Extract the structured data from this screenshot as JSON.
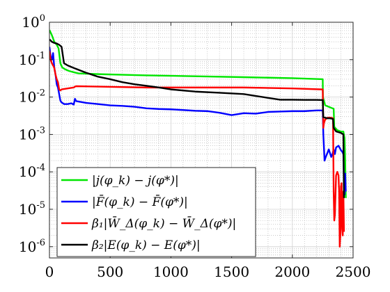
{
  "chart_data": {
    "type": "line",
    "title": "",
    "xlabel": "",
    "ylabel": "",
    "xlim": [
      0,
      2500
    ],
    "ylim": [
      5e-07,
      1
    ],
    "yscale": "log",
    "grid": "on (major and minor)",
    "legend_position": "bottom-left",
    "x_ticks": [
      "0",
      "500",
      "1000",
      "1500",
      "2000",
      "2500"
    ],
    "y_tick_exponents": [
      "0",
      "-1",
      "-2",
      "-3",
      "-4",
      "-5",
      "-6"
    ],
    "y_tick_base": "10",
    "series": [
      {
        "name": "|j(φ_k) − j(φ*)|",
        "color": "#00e600",
        "points": [
          [
            0,
            0.62
          ],
          [
            20,
            0.45
          ],
          [
            40,
            0.3
          ],
          [
            60,
            0.25
          ],
          [
            75,
            0.2
          ],
          [
            90,
            0.08
          ],
          [
            105,
            0.062
          ],
          [
            130,
            0.055
          ],
          [
            160,
            0.05
          ],
          [
            200,
            0.046
          ],
          [
            240,
            0.043
          ],
          [
            400,
            0.041
          ],
          [
            800,
            0.038
          ],
          [
            1200,
            0.036
          ],
          [
            1600,
            0.034
          ],
          [
            2000,
            0.032
          ],
          [
            2250,
            0.03
          ],
          [
            2252,
            0.01
          ],
          [
            2270,
            0.006
          ],
          [
            2300,
            0.0055
          ],
          [
            2330,
            0.005
          ],
          [
            2340,
            0.0049
          ],
          [
            2345,
            0.0016
          ],
          [
            2370,
            0.0013
          ],
          [
            2400,
            0.0012
          ],
          [
            2420,
            0.0012
          ],
          [
            2430,
            0.0008
          ],
          [
            2435,
            0.0002
          ],
          [
            2440,
            2e-05
          ]
        ]
      },
      {
        "name": "|F̄(φ_k) − F̄(φ*)|",
        "color": "#0000ff",
        "points": [
          [
            0,
            0.22
          ],
          [
            10,
            0.12
          ],
          [
            20,
            0.1
          ],
          [
            30,
            0.15
          ],
          [
            40,
            0.06
          ],
          [
            50,
            0.04
          ],
          [
            60,
            0.022
          ],
          [
            70,
            0.018
          ],
          [
            80,
            0.012
          ],
          [
            90,
            0.008
          ],
          [
            100,
            0.0072
          ],
          [
            120,
            0.0065
          ],
          [
            150,
            0.0065
          ],
          [
            180,
            0.0068
          ],
          [
            200,
            0.0063
          ],
          [
            210,
            0.009
          ],
          [
            220,
            0.0078
          ],
          [
            300,
            0.007
          ],
          [
            400,
            0.0065
          ],
          [
            500,
            0.006
          ],
          [
            600,
            0.0058
          ],
          [
            700,
            0.0055
          ],
          [
            800,
            0.005
          ],
          [
            900,
            0.0048
          ],
          [
            1000,
            0.0047
          ],
          [
            1100,
            0.0045
          ],
          [
            1200,
            0.0043
          ],
          [
            1300,
            0.0042
          ],
          [
            1400,
            0.0038
          ],
          [
            1500,
            0.0033
          ],
          [
            1550,
            0.0035
          ],
          [
            1600,
            0.0037
          ],
          [
            1700,
            0.0036
          ],
          [
            1800,
            0.004
          ],
          [
            1900,
            0.0041
          ],
          [
            2000,
            0.0042
          ],
          [
            2100,
            0.0042
          ],
          [
            2150,
            0.0043
          ],
          [
            2200,
            0.0044
          ],
          [
            2250,
            0.0044
          ],
          [
            2255,
            0.001
          ],
          [
            2265,
            0.0002
          ],
          [
            2275,
            0.00025
          ],
          [
            2285,
            0.0003
          ],
          [
            2300,
            0.0004
          ],
          [
            2320,
            0.00025
          ],
          [
            2330,
            0.0003
          ],
          [
            2340,
            0.0004
          ],
          [
            2350,
            0.0003
          ],
          [
            2360,
            0.00045
          ],
          [
            2380,
            0.0005
          ],
          [
            2400,
            0.00038
          ],
          [
            2410,
            0.00035
          ],
          [
            2420,
            0.0003
          ],
          [
            2425,
            5e-05
          ],
          [
            2430,
            2.5e-05
          ],
          [
            2435,
            9e-05
          ],
          [
            2440,
            3e-05
          ]
        ]
      },
      {
        "name": "β₁|W̄_Δ(φ_k) − W̄_Δ(φ*)|",
        "color": "#ff0000",
        "points": [
          [
            0,
            0.17
          ],
          [
            10,
            0.1
          ],
          [
            20,
            0.08
          ],
          [
            30,
            0.07
          ],
          [
            40,
            0.06
          ],
          [
            50,
            0.04
          ],
          [
            60,
            0.03
          ],
          [
            70,
            0.025
          ],
          [
            80,
            0.016
          ],
          [
            90,
            0.015
          ],
          [
            100,
            0.016
          ],
          [
            150,
            0.017
          ],
          [
            200,
            0.018
          ],
          [
            210,
            0.019
          ],
          [
            220,
            0.0195
          ],
          [
            400,
            0.019
          ],
          [
            800,
            0.018
          ],
          [
            1200,
            0.018
          ],
          [
            1600,
            0.018
          ],
          [
            2000,
            0.017
          ],
          [
            2250,
            0.016
          ],
          [
            2255,
            0.0015
          ],
          [
            2260,
            0.002
          ],
          [
            2270,
            0.0025
          ],
          [
            2290,
            0.0028
          ],
          [
            2320,
            0.0028
          ],
          [
            2335,
            0.0027
          ],
          [
            2340,
            3e-05
          ],
          [
            2345,
            5e-06
          ],
          [
            2350,
            7e-06
          ],
          [
            2360,
            8e-05
          ],
          [
            2370,
            0.0001
          ],
          [
            2380,
            8e-05
          ],
          [
            2385,
            3e-05
          ],
          [
            2390,
            1e-06
          ],
          [
            2395,
            2e-06
          ],
          [
            2400,
            4e-05
          ],
          [
            2405,
            5e-05
          ],
          [
            2410,
            3e-06
          ],
          [
            2415,
            2e-06
          ],
          [
            2420,
            3e-05
          ],
          [
            2425,
            2.5e-06
          ]
        ]
      },
      {
        "name": "β₂|E(φ_k) − E(φ*)|",
        "color": "#000000",
        "points": [
          [
            0,
            0.35
          ],
          [
            20,
            0.3
          ],
          [
            40,
            0.28
          ],
          [
            60,
            0.27
          ],
          [
            80,
            0.25
          ],
          [
            100,
            0.22
          ],
          [
            120,
            0.08
          ],
          [
            150,
            0.07
          ],
          [
            200,
            0.06
          ],
          [
            300,
            0.045
          ],
          [
            400,
            0.035
          ],
          [
            500,
            0.03
          ],
          [
            600,
            0.025
          ],
          [
            700,
            0.022
          ],
          [
            800,
            0.02
          ],
          [
            900,
            0.018
          ],
          [
            1000,
            0.016
          ],
          [
            1200,
            0.014
          ],
          [
            1400,
            0.013
          ],
          [
            1600,
            0.012
          ],
          [
            1800,
            0.0095
          ],
          [
            1900,
            0.0085
          ],
          [
            2000,
            0.0085
          ],
          [
            2100,
            0.0084
          ],
          [
            2200,
            0.0084
          ],
          [
            2250,
            0.0083
          ],
          [
            2255,
            0.0029
          ],
          [
            2270,
            0.0028
          ],
          [
            2290,
            0.0027
          ],
          [
            2310,
            0.0027
          ],
          [
            2335,
            0.0026
          ],
          [
            2340,
            0.0015
          ],
          [
            2360,
            0.0012
          ],
          [
            2380,
            0.00115
          ],
          [
            2400,
            0.0011
          ],
          [
            2420,
            0.001
          ],
          [
            2425,
            2e-05
          ]
        ]
      }
    ]
  }
}
